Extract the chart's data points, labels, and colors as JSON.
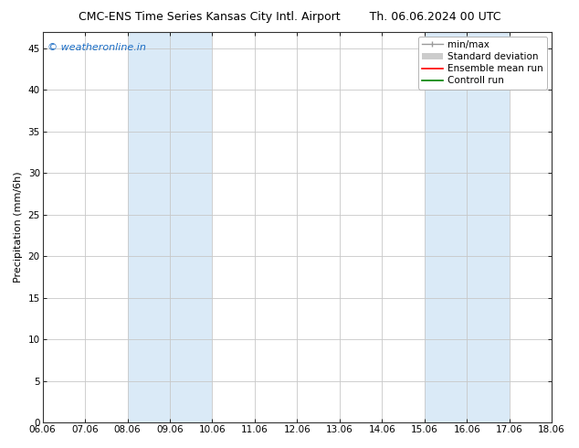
{
  "title_left": "CMC-ENS Time Series Kansas City Intl. Airport",
  "title_right": "Th. 06.06.2024 00 UTC",
  "xlabel_ticks": [
    "06.06",
    "07.06",
    "08.06",
    "09.06",
    "10.06",
    "11.06",
    "12.06",
    "13.06",
    "14.06",
    "15.06",
    "16.06",
    "17.06",
    "18.06"
  ],
  "ylabel": "Precipitation (mm/6h)",
  "ylim": [
    0,
    47
  ],
  "yticks": [
    0,
    5,
    10,
    15,
    20,
    25,
    30,
    35,
    40,
    45
  ],
  "xlim_start": 0,
  "xlim_end": 12,
  "bg_color": "#ffffff",
  "plot_bg_color": "#ffffff",
  "shaded_bands": [
    {
      "x_start": 2,
      "x_end": 4,
      "color": "#daeaf7"
    },
    {
      "x_start": 9,
      "x_end": 11,
      "color": "#daeaf7"
    }
  ],
  "vlines_color": "#c8c8c8",
  "hlines_color": "#c8c8c8",
  "watermark_text": "© weatheronline.in",
  "watermark_color": "#1a6cc4",
  "legend_entries": [
    {
      "label": "min/max",
      "color": "#aaaaaa"
    },
    {
      "label": "Standard deviation",
      "color": "#cccccc"
    },
    {
      "label": "Ensemble mean run",
      "color": "#ff0000"
    },
    {
      "label": "Controll run",
      "color": "#008000"
    }
  ],
  "title_fontsize": 9,
  "axis_label_fontsize": 8,
  "tick_fontsize": 7.5,
  "watermark_fontsize": 8,
  "legend_fontsize": 7.5
}
